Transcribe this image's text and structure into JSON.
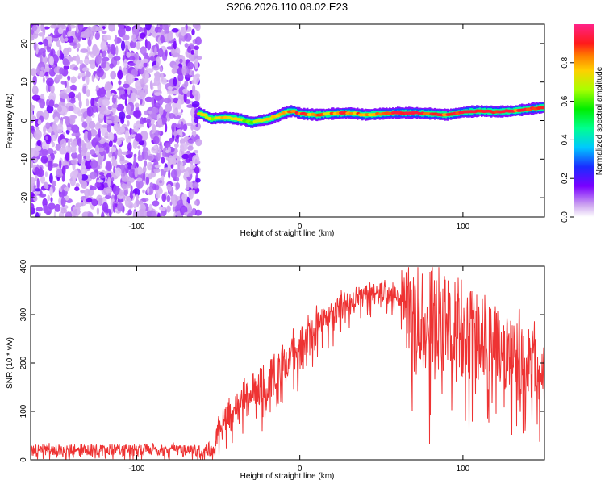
{
  "page": {
    "title": "S206.2026.110.08.02.E23"
  },
  "chart_data": [
    {
      "type": "heatmap",
      "title": "S206.2026.110.08.02.E23",
      "xlabel": "Height of straight line (km)",
      "ylabel": "Frequency (Hz)",
      "xlim": [
        -165,
        150
      ],
      "ylim": [
        -25,
        25
      ],
      "x_ticks": [
        -100,
        0,
        100
      ],
      "y_ticks": [
        -20,
        -10,
        0,
        10,
        20
      ],
      "x_tick_labels": [
        "-100",
        "0",
        "100"
      ],
      "y_tick_labels": [
        "-20",
        "-10",
        "0",
        "10",
        "20"
      ],
      "noise_region_x": [
        -165,
        -62
      ],
      "ridge": {
        "x": [
          -62,
          -55,
          -45,
          -35,
          -30,
          -25,
          -20,
          -15,
          -10,
          -5,
          0,
          10,
          20,
          30,
          40,
          50,
          60,
          70,
          80,
          90,
          100,
          110,
          120,
          130,
          140,
          150
        ],
        "freq_hz": [
          2.0,
          0.5,
          0.8,
          0.2,
          -0.5,
          0.0,
          0.3,
          1.0,
          2.0,
          2.5,
          1.8,
          1.5,
          1.8,
          2.0,
          1.5,
          1.8,
          2.0,
          2.0,
          1.8,
          1.5,
          2.2,
          2.5,
          2.3,
          2.5,
          3.0,
          3.5
        ],
        "amplitude": [
          0.6,
          0.7,
          0.75,
          0.7,
          0.65,
          0.7,
          0.75,
          0.8,
          0.85,
          0.8,
          0.85,
          0.85,
          0.8,
          0.85,
          0.8,
          0.85,
          0.9,
          0.92,
          0.95,
          0.9,
          0.92,
          0.95,
          0.95,
          0.9,
          0.9,
          0.95
        ]
      },
      "colorbar": {
        "label": "Normalized spectral amplitude",
        "range": [
          0.0,
          1.0
        ],
        "ticks": [
          0.0,
          0.2,
          0.4,
          0.6,
          0.8
        ],
        "tick_labels": [
          "0.0",
          "0.2",
          "0.4",
          "0.6",
          "0.8"
        ]
      }
    },
    {
      "type": "line",
      "xlabel": "Height of straight line (km)",
      "ylabel": "SNR (10 * v/v)",
      "xlim": [
        -165,
        150
      ],
      "ylim": [
        0,
        400
      ],
      "x_ticks": [
        -100,
        0,
        100
      ],
      "y_ticks": [
        0,
        100,
        200,
        300,
        400
      ],
      "x_tick_labels": [
        "-100",
        "0",
        "100"
      ],
      "y_tick_labels": [
        "0",
        "100",
        "200",
        "300",
        "400"
      ],
      "color": "#ee3333",
      "series": [
        {
          "name": "SNR",
          "x": [
            -165,
            -140,
            -120,
            -100,
            -80,
            -60,
            -52,
            -50,
            -40,
            -30,
            -20,
            -10,
            0,
            10,
            20,
            30,
            40,
            50,
            60,
            63,
            70,
            80,
            90,
            100,
            110,
            120,
            130,
            140,
            150
          ],
          "mean": [
            20,
            20,
            20,
            20,
            20,
            20,
            20,
            70,
            100,
            140,
            160,
            200,
            230,
            270,
            300,
            330,
            340,
            345,
            345,
            340,
            290,
            280,
            290,
            270,
            250,
            230,
            215,
            200,
            195
          ],
          "spread": [
            12,
            12,
            12,
            12,
            12,
            12,
            12,
            35,
            40,
            45,
            45,
            40,
            40,
            35,
            30,
            25,
            22,
            20,
            20,
            40,
            120,
            120,
            110,
            100,
            90,
            80,
            80,
            75,
            75
          ]
        }
      ]
    }
  ]
}
